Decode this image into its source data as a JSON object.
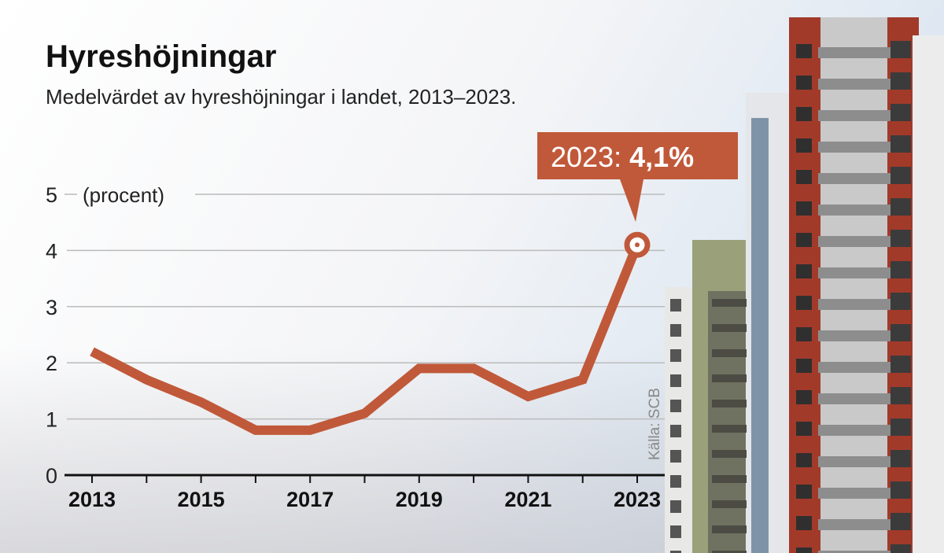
{
  "chart_data": {
    "type": "line",
    "title": "Hyreshöjningar",
    "subtitle": "Medelvärdet av hyreshöjningar i landet, 2013–2023.",
    "ylabel": "(procent)",
    "x": [
      2013,
      2014,
      2015,
      2016,
      2017,
      2018,
      2019,
      2020,
      2021,
      2022,
      2023
    ],
    "values": [
      2.2,
      1.7,
      1.3,
      0.8,
      0.8,
      1.1,
      1.9,
      1.9,
      1.4,
      1.7,
      4.1
    ],
    "ylim": [
      0,
      5
    ],
    "yticks": [
      "0",
      "1",
      "2",
      "3",
      "4",
      "5"
    ],
    "xticks": [
      "2013",
      "2015",
      "2017",
      "2019",
      "2021",
      "2023"
    ],
    "grid": true,
    "annotation": {
      "year_label": "2023: ",
      "value_label": "4,1%"
    },
    "source": "Källa: SCB",
    "colors": {
      "line": "#c0593a",
      "callout": "#c0593a",
      "grid": "#bbbbbb",
      "axis": "#111111"
    }
  }
}
